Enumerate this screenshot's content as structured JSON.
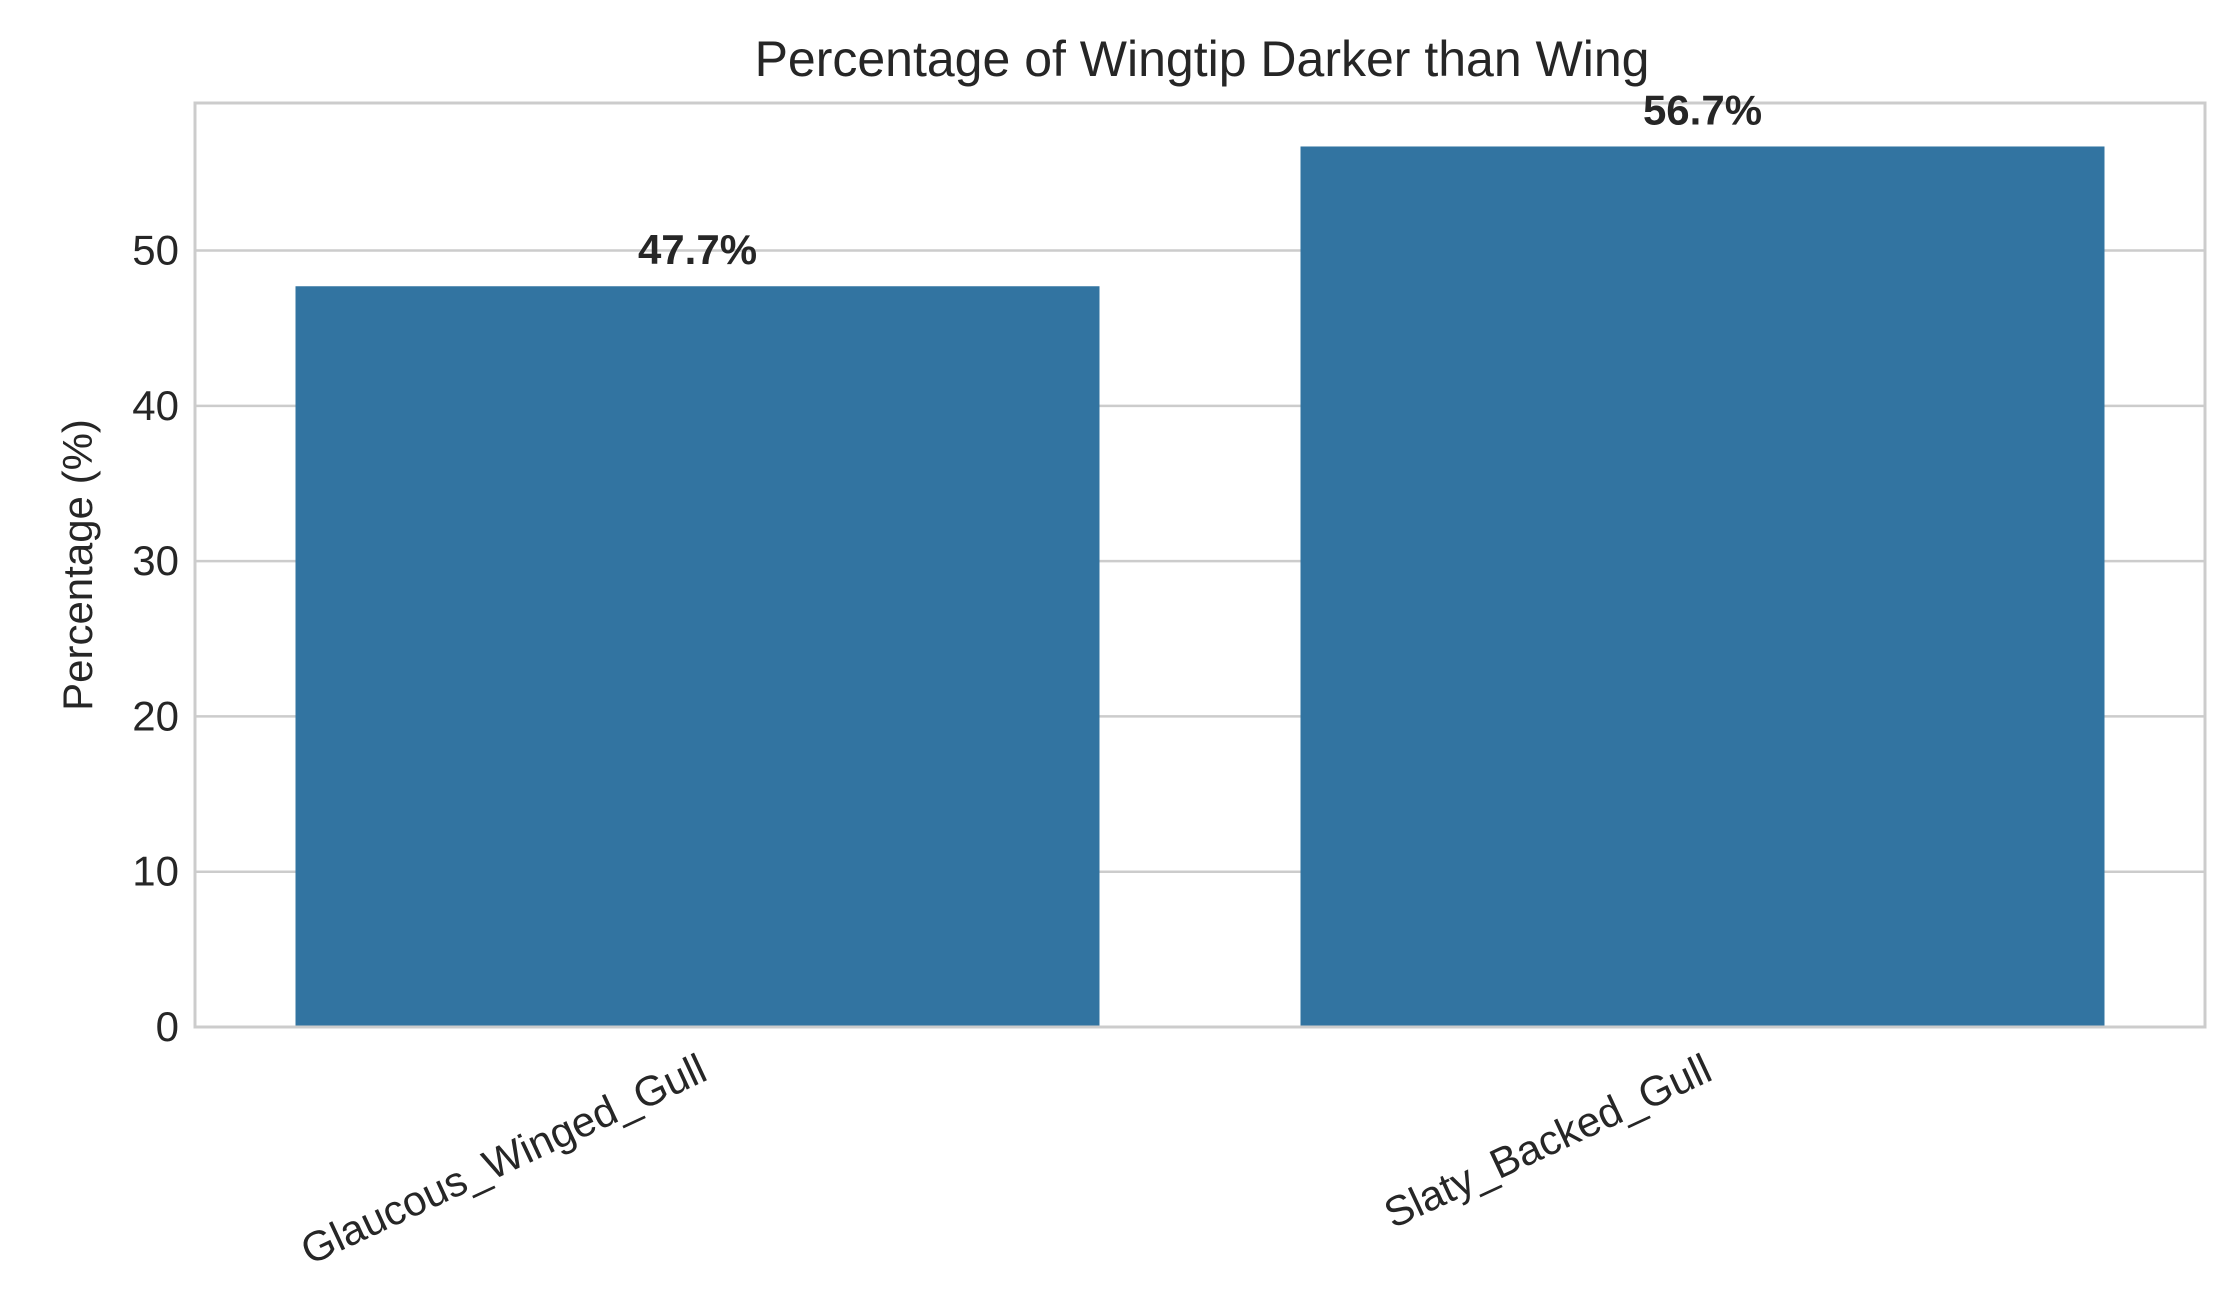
{
  "chart_data": {
    "type": "bar",
    "title": "Percentage of Wingtip Darker than Wing",
    "xlabel": "",
    "ylabel": "Percentage (%)",
    "categories": [
      "Glaucous_Winged_Gull",
      "Slaty_Backed_Gull"
    ],
    "values": [
      47.7,
      56.7
    ],
    "data_labels": [
      "47.7%",
      "56.7%"
    ],
    "ylim": [
      0,
      59.5
    ],
    "yticks": [
      0,
      10,
      20,
      30,
      40,
      50
    ],
    "grid": true,
    "grid_axis": "y",
    "bar_color": "#3274a1",
    "x_tick_rotation_deg": 25
  }
}
